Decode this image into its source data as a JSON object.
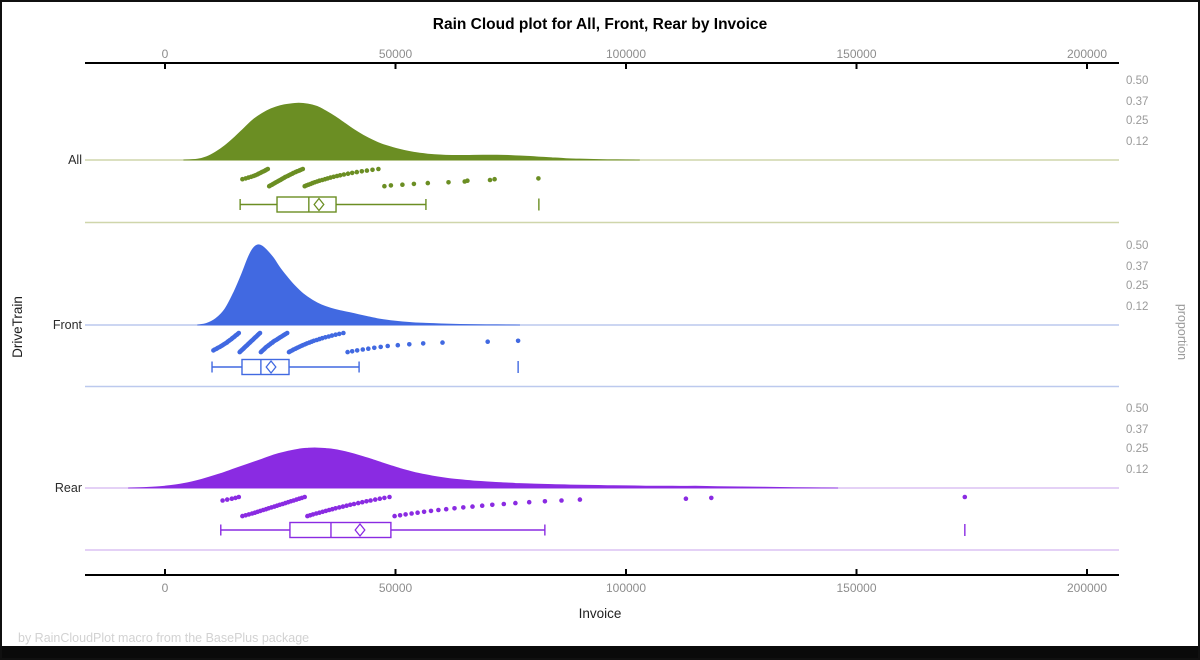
{
  "title": "Rain Cloud plot for All, Front, Rear by Invoice",
  "footer": "by RainCloudPlot macro from the BasePlus package",
  "x_axis": {
    "label": "Invoice",
    "tick_values": [
      0,
      50000,
      100000,
      150000,
      200000
    ],
    "tick_labels": [
      "0",
      "50000",
      "100000",
      "150000",
      "200000"
    ]
  },
  "y_axis": {
    "label": "DriveTrain"
  },
  "right_axis": {
    "label": "proportion",
    "tick_values": [
      0.5,
      0.37,
      0.25,
      0.12
    ],
    "tick_labels": [
      "0.50",
      "0.37",
      "0.25",
      "0.12"
    ]
  },
  "colors": {
    "axis_line": "#000000",
    "tick_label": "#8d8d8d",
    "category_label": "#2b2b2b",
    "axis_title": "#1f1f1f",
    "footer_text": "#d2d2d2"
  },
  "chart_data": {
    "type": "raincloud",
    "title": "Rain Cloud plot for All, Front, Rear by Invoice",
    "xlabel": "Invoice",
    "ylabel": "DriveTrain",
    "y2label": "proportion",
    "xlim": [
      -17000,
      207000
    ],
    "proportion_ticks": [
      0.5,
      0.37,
      0.25,
      0.12
    ],
    "groups": [
      {
        "name": "All",
        "color": "#6B8E23",
        "pale_color": "#cfd6ab",
        "box": {
          "whisker_low": 16300,
          "q1": 24300,
          "median": 31200,
          "q3": 37100,
          "whisker_high": 56600,
          "mean": 33400,
          "outliers": [
            81100
          ]
        },
        "density": [
          [
            4000,
            0
          ],
          [
            7000,
            0.005
          ],
          [
            9000,
            0.02
          ],
          [
            11000,
            0.05
          ],
          [
            13000,
            0.09
          ],
          [
            15000,
            0.14
          ],
          [
            17000,
            0.195
          ],
          [
            19000,
            0.25
          ],
          [
            21000,
            0.29
          ],
          [
            23000,
            0.32
          ],
          [
            25000,
            0.34
          ],
          [
            27000,
            0.35
          ],
          [
            29000,
            0.355
          ],
          [
            31000,
            0.35
          ],
          [
            33000,
            0.335
          ],
          [
            35000,
            0.305
          ],
          [
            37000,
            0.27
          ],
          [
            39000,
            0.23
          ],
          [
            41000,
            0.19
          ],
          [
            43000,
            0.155
          ],
          [
            45000,
            0.125
          ],
          [
            47000,
            0.1
          ],
          [
            49000,
            0.082
          ],
          [
            51000,
            0.066
          ],
          [
            54000,
            0.048
          ],
          [
            57000,
            0.037
          ],
          [
            60000,
            0.031
          ],
          [
            63000,
            0.029
          ],
          [
            66000,
            0.029
          ],
          [
            69000,
            0.03
          ],
          [
            72000,
            0.03
          ],
          [
            75000,
            0.028
          ],
          [
            78000,
            0.024
          ],
          [
            81000,
            0.019
          ],
          [
            84000,
            0.014
          ],
          [
            87000,
            0.009
          ],
          [
            90000,
            0.006
          ],
          [
            94000,
            0.003
          ],
          [
            98000,
            0.001
          ],
          [
            103000,
            0
          ]
        ],
        "points": [
          16800,
          17500,
          18100,
          18700,
          19200,
          19600,
          20000,
          20300,
          20700,
          21000,
          21400,
          21700,
          22000,
          22300,
          22600,
          22900,
          23200,
          23500,
          23800,
          24100,
          24400,
          24700,
          25000,
          25300,
          25600,
          25900,
          26200,
          26600,
          26900,
          27200,
          27600,
          27900,
          28300,
          28700,
          29100,
          29500,
          29900,
          30300,
          30700,
          31100,
          31600,
          32000,
          32500,
          33000,
          33500,
          34100,
          34700,
          35300,
          35900,
          36600,
          37300,
          38000,
          38800,
          39700,
          40600,
          41600,
          42700,
          43800,
          45000,
          46300,
          47600,
          49000,
          51500,
          54000,
          57000,
          61500,
          65000,
          65600,
          70500,
          71500,
          81000
        ]
      },
      {
        "name": "Front",
        "color": "#4169E1",
        "pale_color": "#bcc9ee",
        "box": {
          "whisker_low": 10200,
          "q1": 16700,
          "median": 20800,
          "q3": 26900,
          "whisker_high": 42100,
          "mean": 23000,
          "outliers": [
            76600
          ]
        },
        "density": [
          [
            7000,
            0
          ],
          [
            9000,
            0.01
          ],
          [
            11000,
            0.04
          ],
          [
            13000,
            0.1
          ],
          [
            15000,
            0.21
          ],
          [
            16500,
            0.31
          ],
          [
            18000,
            0.42
          ],
          [
            19000,
            0.475
          ],
          [
            20000,
            0.5
          ],
          [
            21000,
            0.495
          ],
          [
            22000,
            0.47
          ],
          [
            23500,
            0.42
          ],
          [
            25000,
            0.355
          ],
          [
            26500,
            0.3
          ],
          [
            28000,
            0.25
          ],
          [
            30000,
            0.195
          ],
          [
            32000,
            0.155
          ],
          [
            34000,
            0.125
          ],
          [
            36000,
            0.105
          ],
          [
            38000,
            0.09
          ],
          [
            40000,
            0.078
          ],
          [
            42000,
            0.065
          ],
          [
            44000,
            0.052
          ],
          [
            46000,
            0.04
          ],
          [
            48000,
            0.031
          ],
          [
            50000,
            0.024
          ],
          [
            53000,
            0.016
          ],
          [
            56000,
            0.011
          ],
          [
            60000,
            0.007
          ],
          [
            64000,
            0.004
          ],
          [
            68000,
            0.002
          ],
          [
            72000,
            0.001
          ],
          [
            77000,
            0
          ]
        ],
        "points": [
          10500,
          10800,
          11200,
          11500,
          11900,
          12200,
          12500,
          12800,
          13100,
          13400,
          13600,
          13900,
          14100,
          14400,
          14600,
          14900,
          15100,
          15300,
          15600,
          15800,
          16000,
          16200,
          16400,
          16600,
          16800,
          17000,
          17200,
          17400,
          17600,
          17800,
          18000,
          18200,
          18400,
          18600,
          18800,
          19000,
          19200,
          19400,
          19600,
          19800,
          20000,
          20200,
          20400,
          20600,
          20800,
          21000,
          21200,
          21400,
          21600,
          21800,
          22000,
          22300,
          22500,
          22800,
          23000,
          23300,
          23500,
          23800,
          24100,
          24400,
          24700,
          25000,
          25300,
          25600,
          25900,
          26200,
          26500,
          26900,
          27200,
          27600,
          27900,
          28300,
          28700,
          29100,
          29500,
          29900,
          30400,
          30800,
          31300,
          31800,
          32300,
          32900,
          33500,
          34100,
          34800,
          35500,
          36200,
          37000,
          37800,
          38700,
          39600,
          40600,
          41700,
          42900,
          44100,
          45400,
          46800,
          48300,
          50500,
          53000,
          56000,
          60200,
          70000,
          76600
        ]
      },
      {
        "name": "Rear",
        "color": "#8A2BE2",
        "pale_color": "#dcc2f4",
        "box": {
          "whisker_low": 12100,
          "q1": 27100,
          "median": 36000,
          "q3": 49000,
          "whisker_high": 82400,
          "mean": 42300,
          "outliers": [
            173500
          ]
        },
        "density": [
          [
            -8000,
            0
          ],
          [
            -4000,
            0.004
          ],
          [
            0,
            0.012
          ],
          [
            4000,
            0.028
          ],
          [
            8000,
            0.055
          ],
          [
            12000,
            0.09
          ],
          [
            15000,
            0.12
          ],
          [
            18000,
            0.15
          ],
          [
            21000,
            0.18
          ],
          [
            24000,
            0.21
          ],
          [
            27000,
            0.232
          ],
          [
            29000,
            0.243
          ],
          [
            31000,
            0.249
          ],
          [
            33000,
            0.25
          ],
          [
            35000,
            0.247
          ],
          [
            37000,
            0.24
          ],
          [
            39000,
            0.228
          ],
          [
            41000,
            0.213
          ],
          [
            43000,
            0.196
          ],
          [
            45000,
            0.178
          ],
          [
            47000,
            0.159
          ],
          [
            49000,
            0.14
          ],
          [
            51000,
            0.122
          ],
          [
            53000,
            0.106
          ],
          [
            55000,
            0.092
          ],
          [
            58000,
            0.075
          ],
          [
            61000,
            0.062
          ],
          [
            64000,
            0.052
          ],
          [
            67000,
            0.044
          ],
          [
            70000,
            0.038
          ],
          [
            73000,
            0.033
          ],
          [
            76000,
            0.029
          ],
          [
            80000,
            0.025
          ],
          [
            84000,
            0.022
          ],
          [
            88000,
            0.019
          ],
          [
            92000,
            0.017
          ],
          [
            96000,
            0.015
          ],
          [
            100000,
            0.014
          ],
          [
            105000,
            0.012
          ],
          [
            110000,
            0.011
          ],
          [
            115000,
            0.011
          ],
          [
            120000,
            0.009
          ],
          [
            125000,
            0.007
          ],
          [
            130000,
            0.005
          ],
          [
            135000,
            0.003
          ],
          [
            140000,
            0.0015
          ],
          [
            146000,
            0
          ]
        ],
        "points": [
          12500,
          13500,
          14500,
          15300,
          16000,
          16800,
          17500,
          18200,
          18900,
          19500,
          20100,
          20700,
          21300,
          21900,
          22500,
          23100,
          23700,
          24300,
          24900,
          25500,
          26100,
          26700,
          27300,
          27900,
          28500,
          29100,
          29700,
          30300,
          30900,
          31500,
          32100,
          32800,
          33500,
          34200,
          34900,
          35600,
          36300,
          37000,
          37800,
          38600,
          39400,
          40200,
          41000,
          41900,
          42800,
          43700,
          44600,
          45600,
          46600,
          47600,
          48700,
          49800,
          51000,
          52200,
          53500,
          54800,
          56200,
          57700,
          59300,
          61000,
          62800,
          64700,
          66700,
          68800,
          71000,
          73500,
          76000,
          79000,
          82400,
          86000,
          90000,
          113000,
          118500,
          173500
        ]
      }
    ]
  }
}
